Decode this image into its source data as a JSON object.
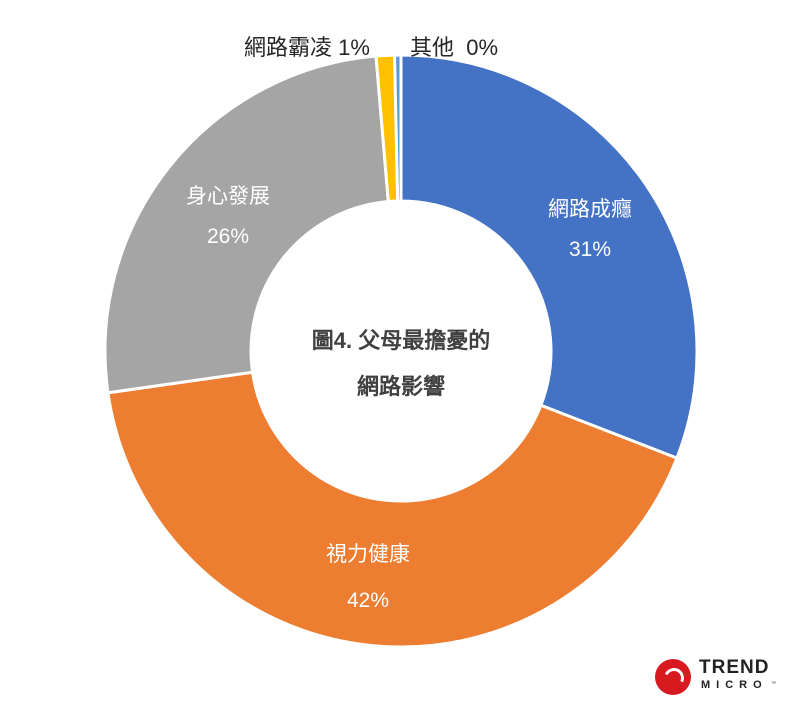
{
  "chart_data": {
    "type": "pie",
    "variant": "donut",
    "title": "圖4. 父母最擔憂的網路影響",
    "title_lines": [
      "圖4. 父母最擔憂的",
      "網路影響"
    ],
    "categories": [
      "網路成癮",
      "視力健康",
      "身心發展",
      "網路霸凌",
      "其他"
    ],
    "values": [
      31,
      42,
      26,
      1,
      0
    ],
    "value_labels": [
      "31%",
      "42%",
      "26%",
      "1%",
      "0%"
    ],
    "colors": [
      "#4472C4",
      "#ED7D31",
      "#A5A5A5",
      "#FFC000",
      "#5B9BD5"
    ],
    "start_angle": "top",
    "direction": "clockwise",
    "legend": "none",
    "data_labels": {
      "inside": [
        "網路成癮",
        "視力健康",
        "身心發展"
      ],
      "outside": [
        "網路霸凌",
        "其他"
      ]
    }
  },
  "labels": {
    "addiction": {
      "name": "網路成癮",
      "pct": "31%"
    },
    "vision": {
      "name": "視力健康",
      "pct": "42%"
    },
    "development": {
      "name": "身心發展",
      "pct": "26%"
    },
    "bullying": {
      "text": "網路霸凌 1%"
    },
    "other": {
      "text": "其他  0%"
    }
  },
  "logo": {
    "brand_line1": "TREND",
    "brand_line2": "MICRO",
    "tm": "™",
    "icon": "trend-micro-logo-icon",
    "color": "#D71920"
  }
}
